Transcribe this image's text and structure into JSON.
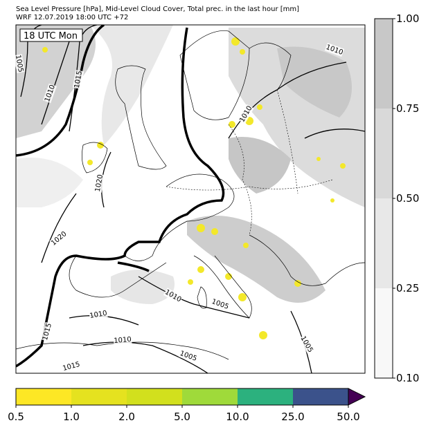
{
  "header": {
    "title": "Sea Level Pressure [hPa], Mid-Level Cloud Cover, Total prec. in the last hour [mm]",
    "subtitle": "WRF 12.07.2019 18:00 UTC +72"
  },
  "map": {
    "time_label": "18 UTC Mon",
    "isobar_labels": [
      "1005",
      "1010",
      "1015",
      "1010",
      "1010",
      "1020",
      "1020",
      "1010",
      "1005",
      "1010",
      "1010",
      "1005",
      "1005",
      "1015",
      "1015"
    ]
  },
  "cloud_colorbar": {
    "labels": [
      "1.00",
      "0.75",
      "0.50",
      "0.25",
      "0.10"
    ],
    "colors": [
      "#c8c8c8",
      "#d9d9d9",
      "#e8e8e8",
      "#f8f8f8"
    ]
  },
  "precip_colorbar": {
    "labels": [
      "0.5",
      "1.0",
      "2.0",
      "5.0",
      "10.0",
      "25.0",
      "50.0"
    ],
    "colors": [
      "#fde725",
      "#e5e21f",
      "#d2e01d",
      "#9fda3a",
      "#2cb17e",
      "#3b528b"
    ],
    "extend_color": "#440154"
  }
}
